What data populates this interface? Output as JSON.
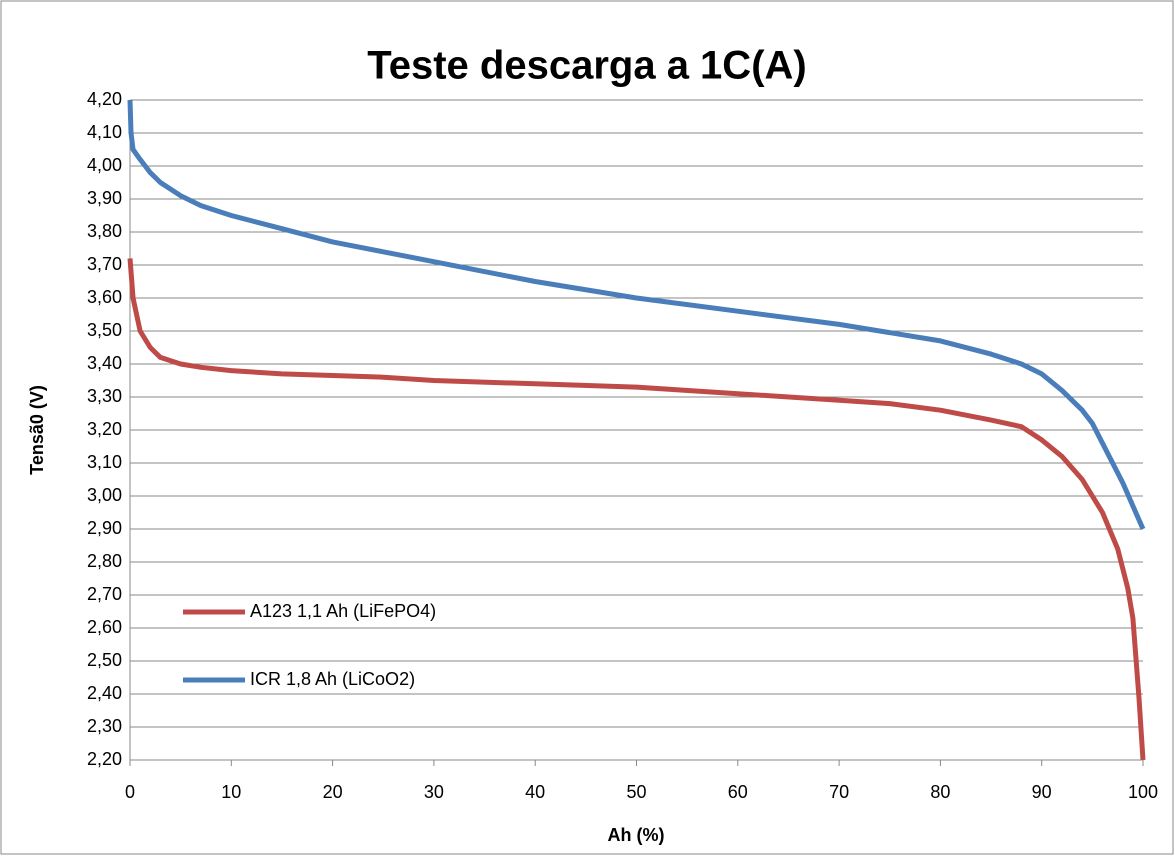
{
  "chart_data": {
    "type": "line",
    "title": "Teste descarga a 1C(A)",
    "xlabel": "Ah (%)",
    "ylabel": "Tensã0 (V)",
    "xlim": [
      0,
      100
    ],
    "xticks": [
      0,
      10,
      20,
      30,
      40,
      50,
      60,
      70,
      80,
      90,
      100
    ],
    "ylim": [
      2.2,
      4.2
    ],
    "yticks": [
      {
        "value": 2.2,
        "label": "2,20"
      },
      {
        "value": 2.3,
        "label": "2,30"
      },
      {
        "value": 2.4,
        "label": "2,40"
      },
      {
        "value": 2.5,
        "label": "2,50"
      },
      {
        "value": 2.6,
        "label": "2,60"
      },
      {
        "value": 2.7,
        "label": "2,70"
      },
      {
        "value": 2.8,
        "label": "2,80"
      },
      {
        "value": 2.9,
        "label": "2,90"
      },
      {
        "value": 3.0,
        "label": "3,00"
      },
      {
        "value": 3.1,
        "label": "3,10"
      },
      {
        "value": 3.2,
        "label": "3,20"
      },
      {
        "value": 3.3,
        "label": "3,30"
      },
      {
        "value": 3.4,
        "label": "3,40"
      },
      {
        "value": 3.5,
        "label": "3,50"
      },
      {
        "value": 3.6,
        "label": "3,60"
      },
      {
        "value": 3.7,
        "label": "3,70"
      },
      {
        "value": 3.8,
        "label": "3,80"
      },
      {
        "value": 3.9,
        "label": "3,90"
      },
      {
        "value": 4.0,
        "label": "4,00"
      },
      {
        "value": 4.1,
        "label": "4,10"
      },
      {
        "value": 4.2,
        "label": "4,20"
      }
    ],
    "grid": true,
    "legend": "lower left",
    "series": [
      {
        "name": "A123 1,1 Ah (LiFePO4)",
        "color": "#be4b48",
        "x": [
          0,
          0.3,
          1,
          2,
          3,
          5,
          7,
          10,
          15,
          20,
          25,
          30,
          40,
          50,
          60,
          70,
          75,
          80,
          85,
          88,
          90,
          92,
          94,
          95,
          96,
          97.5,
          98.5,
          99,
          99.6,
          100
        ],
        "values": [
          3.72,
          3.6,
          3.5,
          3.45,
          3.42,
          3.4,
          3.39,
          3.38,
          3.37,
          3.365,
          3.36,
          3.35,
          3.34,
          3.33,
          3.31,
          3.29,
          3.28,
          3.26,
          3.23,
          3.21,
          3.17,
          3.12,
          3.05,
          3.0,
          2.95,
          2.84,
          2.72,
          2.63,
          2.39,
          2.2
        ]
      },
      {
        "name": "ICR 1,8 Ah (LiCoO2)",
        "color": "#4a7ebb",
        "x": [
          0,
          0.1,
          0.3,
          1,
          2,
          3,
          5,
          7,
          10,
          15,
          20,
          25,
          30,
          40,
          50,
          60,
          70,
          80,
          85,
          88,
          90,
          92,
          94,
          95,
          96,
          97,
          98,
          99,
          100
        ],
        "values": [
          4.2,
          4.1,
          4.05,
          4.02,
          3.98,
          3.95,
          3.91,
          3.88,
          3.85,
          3.81,
          3.77,
          3.74,
          3.71,
          3.65,
          3.6,
          3.56,
          3.52,
          3.47,
          3.43,
          3.4,
          3.37,
          3.32,
          3.26,
          3.22,
          3.16,
          3.1,
          3.04,
          2.97,
          2.9
        ]
      }
    ]
  }
}
